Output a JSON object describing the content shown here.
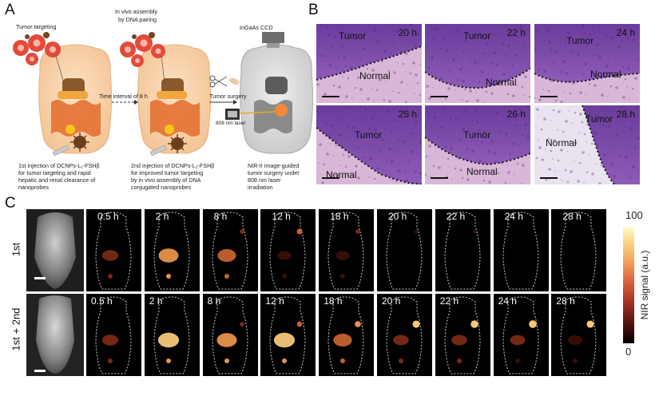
{
  "panels": {
    "a": {
      "letter": "A",
      "labels": {
        "tumor_targeting": "Tumor targeting",
        "in_vivo_assembly_l1": "In vivo assembly",
        "in_vivo_assembly_l2": "by DNA pairing",
        "ccd": "InGaAs CCD",
        "time_interval": "Time interval of 8 h",
        "tumor_surgery": "Tumor surgery",
        "laser": "808 nm laser"
      },
      "captions": {
        "first": [
          "1st injection of DCNPs-L₁-FSHβ",
          "for tumor targeting and rapid",
          "hepatic and renal clearance of",
          "nanoprobes"
        ],
        "second": [
          "2nd injection of DCNPs-L₂-FSHβ",
          "for improved tumor targeting",
          "by in vivo assembly of DNA",
          "conjugated nanoprobes"
        ],
        "third": [
          "NIR-II image-guided",
          "tumor surgery under",
          "808 nm laser",
          "irradiation"
        ]
      }
    },
    "b": {
      "letter": "B",
      "tumor_label": "Tumor",
      "normal_label": "Normal",
      "times": [
        "20 h",
        "22 h",
        "24 h",
        "25 h",
        "26 h",
        "28 h"
      ]
    },
    "c": {
      "letter": "C",
      "rows": [
        "1st",
        "1st + 2nd"
      ],
      "times": [
        "0.5 h",
        "2 h",
        "8 h",
        "12 h",
        "18 h",
        "20 h",
        "22 h",
        "24 h",
        "28 h"
      ],
      "colorbar": {
        "max": "100",
        "min": "0",
        "label": "NIR signal (a.u.)"
      },
      "intensity": {
        "first": [
          0.35,
          0.75,
          0.6,
          0.1,
          0.12,
          0.05,
          0.04,
          0.03,
          0.02
        ],
        "second": [
          0.35,
          0.85,
          0.75,
          0.85,
          0.6,
          0.3,
          0.3,
          0.25,
          0.2
        ]
      },
      "tumor_signal": {
        "first": [
          0,
          0,
          0.3,
          0.5,
          0.25,
          0.1,
          0.1,
          0.05,
          0.05
        ],
        "second": [
          0,
          0,
          0.3,
          0.45,
          0.6,
          0.85,
          0.9,
          0.95,
          0.85
        ]
      }
    }
  }
}
